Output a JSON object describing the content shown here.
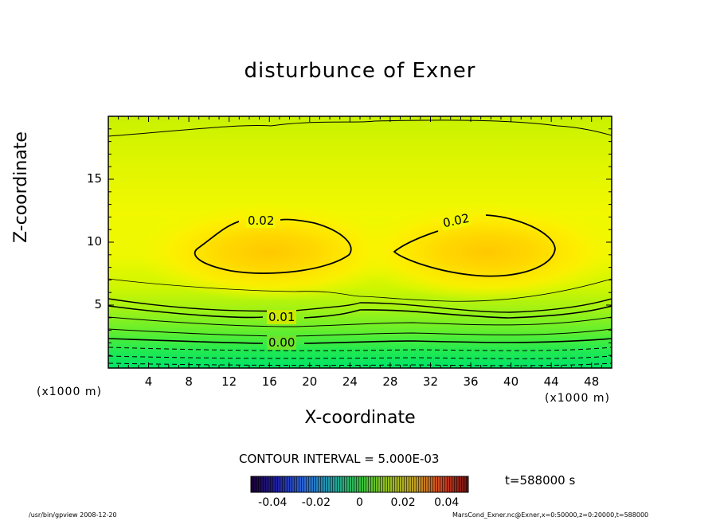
{
  "chart_data": {
    "type": "heatmap",
    "title": "disturbunce of Exner",
    "xlabel": "X-coordinate",
    "ylabel": "Z-coordinate",
    "x_unit": "(x1000 m)",
    "y_unit": "(x1000 m)",
    "xlim": [
      0,
      50
    ],
    "ylim": [
      0,
      20
    ],
    "xticks": [
      4,
      8,
      12,
      16,
      20,
      24,
      28,
      32,
      36,
      40,
      44,
      48
    ],
    "yticks": [
      5,
      10,
      15
    ],
    "contour_interval_label": "CONTOUR INTERVAL = 5.000E-03",
    "contour_labels": [
      "0.02",
      "0.02",
      "0.01",
      "0.00"
    ],
    "time_label": "t=588000 s",
    "colorbar": {
      "range": [
        -0.05,
        0.05
      ],
      "ticks": [
        "-0.04",
        "-0.02",
        "0",
        "0.02",
        "0.04"
      ]
    },
    "colors": {
      "low": "#00e060",
      "mid": "#d8f400",
      "high": "#ffc800"
    }
  },
  "footer": {
    "left": "/usr/bin/gpview   2008-12-20",
    "right": "MarsCond_Exner.nc@Exner,x=0:50000,z=0:20000,t=588000"
  }
}
